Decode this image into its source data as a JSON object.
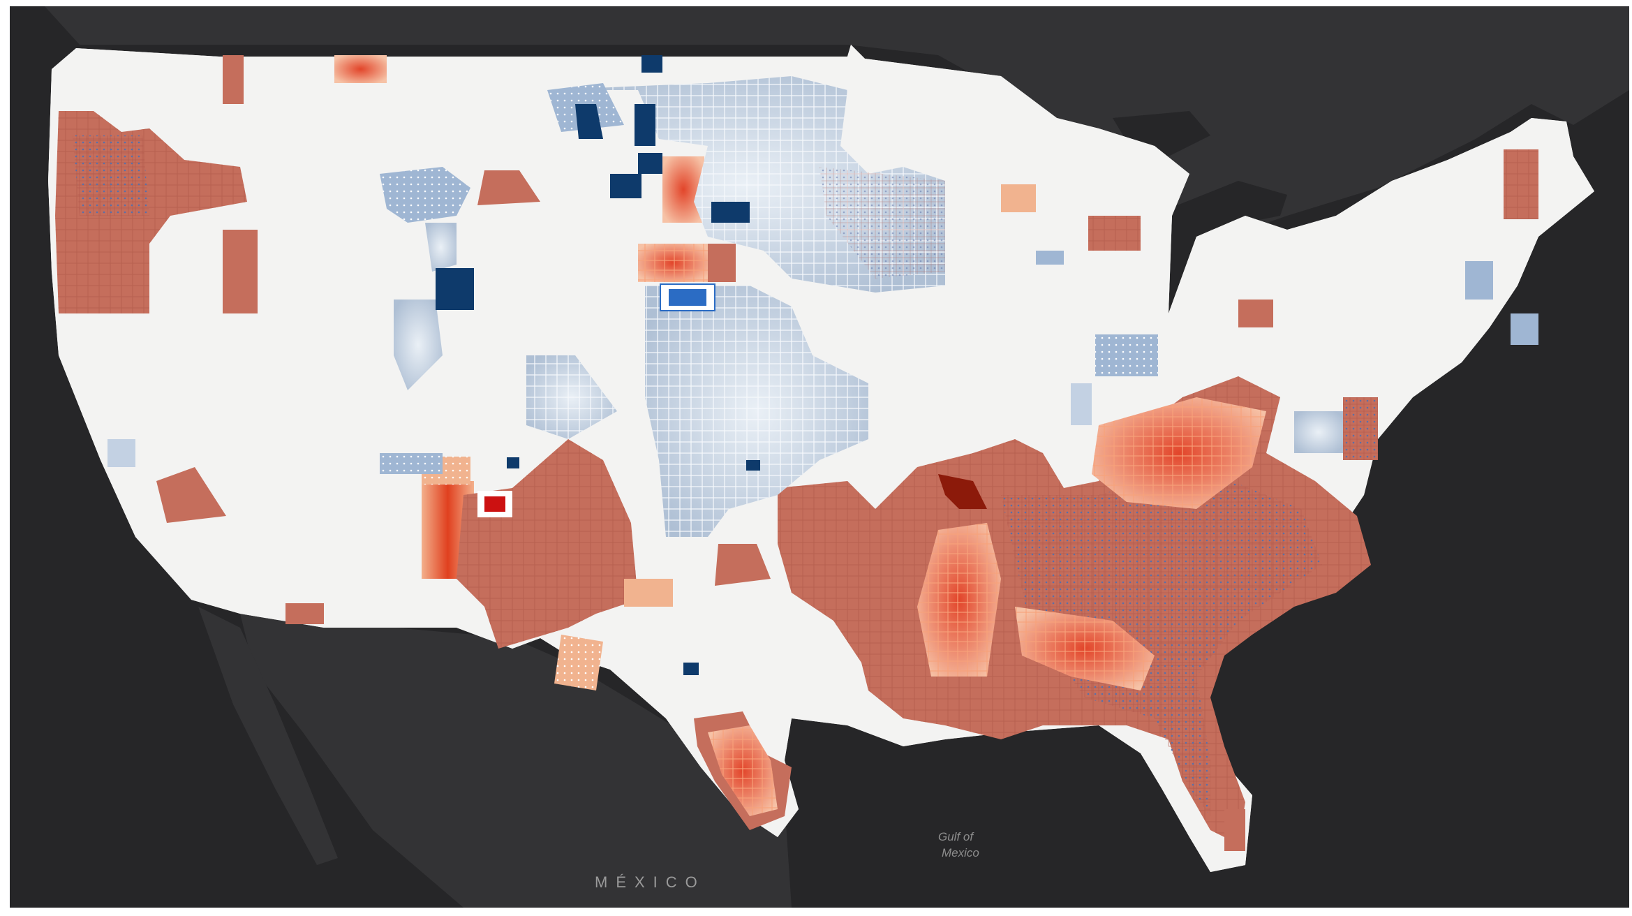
{
  "map": {
    "labels": {
      "country": "MÉXICO",
      "gulf_line1": "Gulf of",
      "gulf_line2": "Mexico"
    },
    "colors": {
      "basemap_dark": "#262628",
      "basemap_land_dark": "#343436",
      "county_neutral": "#f3f3f2",
      "county_border": "#d4d4d4",
      "hot_light": "#f1b38f",
      "hot_mid": "#c56e5c",
      "hot_strong": "#e2452a",
      "hot_extreme": "#8c1a0a",
      "cold_light": "#c3d1e3",
      "cold_mid": "#9fb6d3",
      "cold_strong": "#0e3a6b",
      "highlight_red": "#cc1111",
      "highlight_blue": "#2b6cc4"
    }
  }
}
